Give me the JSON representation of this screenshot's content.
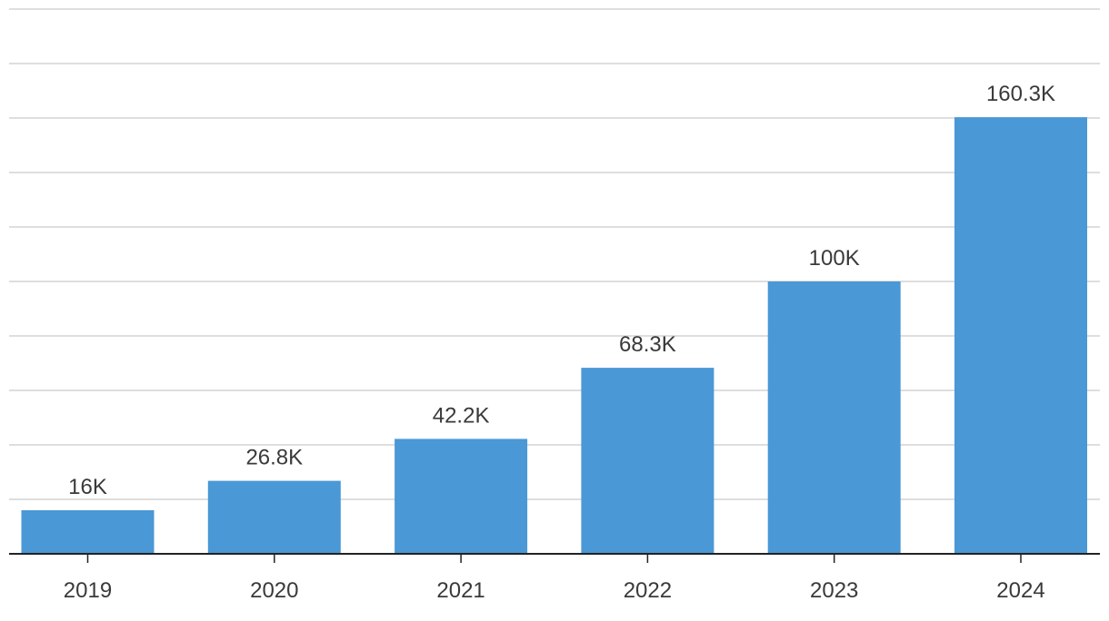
{
  "chart_data": {
    "type": "bar",
    "title": "",
    "xlabel": "",
    "ylabel": "",
    "categories": [
      "2019",
      "2020",
      "2021",
      "2022",
      "2023",
      "2024"
    ],
    "values": [
      16000,
      26800,
      42200,
      68300,
      100000,
      160300
    ],
    "value_labels": [
      "16K",
      "26.8K",
      "42.2K",
      "68.3K",
      "100K",
      "160.3K"
    ],
    "ylim": [
      0,
      200000
    ],
    "y_grid_step": 20000,
    "grid": true,
    "y_tick_labels_shown": false,
    "legend": "none",
    "colors": {
      "bar": "#4a98d6",
      "grid": "#d4d4d4",
      "axis": "#222222",
      "text": "#3a3a3a"
    }
  }
}
